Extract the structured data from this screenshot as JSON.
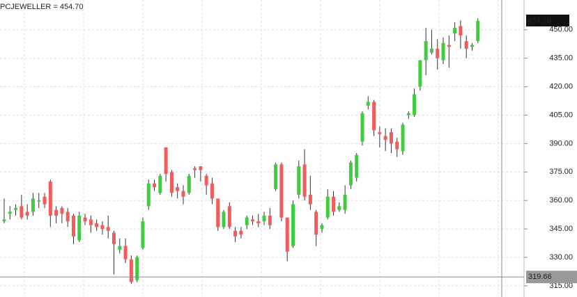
{
  "chart_data": {
    "type": "candlestick",
    "title": "PCJEWELLER = 454.70",
    "up_color": "#3fcc3f",
    "down_color": "#f25c5c",
    "grid": true,
    "ylim": [
      309.1,
      465.7
    ],
    "yticks": [
      {
        "value": 315,
        "label": "315.00"
      },
      {
        "value": 330,
        "label": "330.00"
      },
      {
        "value": 345,
        "label": "345.00"
      },
      {
        "value": 360,
        "label": "360.00"
      },
      {
        "value": 375,
        "label": "375.00"
      },
      {
        "value": 390,
        "label": "390.00"
      },
      {
        "value": 405,
        "label": "405.00"
      },
      {
        "value": 420,
        "label": "420.00"
      },
      {
        "value": 435,
        "label": "435.00"
      },
      {
        "value": 450,
        "label": "450.00"
      }
    ],
    "last_price": {
      "value": 454.7,
      "label": "454.70"
    },
    "crosshair": {
      "value": 319.66,
      "label": "319.66"
    },
    "open": [
      349,
      353,
      355,
      357,
      354,
      354,
      360,
      362,
      370,
      355,
      356,
      354,
      352,
      339,
      351,
      350,
      348,
      347,
      346,
      343,
      334,
      336,
      329,
      318,
      335,
      357,
      369,
      364,
      388,
      375,
      367,
      365,
      364,
      377,
      378,
      373,
      369,
      361,
      346,
      357,
      344,
      344,
      347,
      350,
      349,
      349,
      352,
      366,
      379,
      351,
      336,
      363,
      379,
      363,
      354,
      345,
      351,
      362,
      355,
      355,
      368,
      372,
      391,
      410,
      412,
      396,
      394,
      396,
      391,
      386,
      405,
      405,
      420,
      434,
      438,
      440,
      434,
      442,
      448,
      452,
      444,
      441,
      444
    ],
    "high": [
      361,
      357,
      358,
      363,
      358,
      364,
      364,
      364,
      371,
      357,
      357,
      356,
      353,
      354,
      353,
      352,
      350,
      349,
      352,
      344,
      340,
      340,
      331,
      331,
      351,
      371,
      371,
      374,
      388,
      376,
      369,
      368,
      374,
      378,
      378,
      374,
      372,
      361,
      355,
      359,
      346,
      346,
      352,
      352,
      353,
      354,
      356,
      380,
      380,
      351,
      360,
      381,
      387,
      373,
      355,
      348,
      366,
      365,
      359,
      368,
      381,
      385,
      407,
      415,
      413,
      399,
      398,
      398,
      393,
      401,
      407,
      419,
      434,
      451,
      450,
      445,
      446,
      447,
      454,
      455,
      447,
      443,
      456
    ],
    "low": [
      348,
      350,
      352,
      350,
      350,
      352,
      356,
      356,
      346,
      348,
      348,
      346,
      337,
      338,
      347,
      343,
      344,
      342,
      340,
      321,
      332,
      327,
      316,
      317,
      334,
      355,
      365,
      363,
      370,
      362,
      361,
      358,
      363,
      372,
      370,
      363,
      358,
      344,
      345,
      345,
      338,
      340,
      345,
      347,
      346,
      347,
      345,
      365,
      349,
      328,
      335,
      361,
      360,
      355,
      336,
      343,
      350,
      352,
      354,
      353,
      366,
      370,
      389,
      408,
      394,
      388,
      386,
      385,
      383,
      384,
      403,
      404,
      418,
      426,
      437,
      429,
      432,
      430,
      444,
      440,
      435,
      439,
      443
    ],
    "close": [
      350,
      354,
      356,
      351,
      352,
      361,
      360,
      358,
      352,
      352,
      353,
      349,
      341,
      352,
      349,
      347,
      346,
      345,
      344,
      337,
      336,
      329,
      317,
      330,
      349,
      369,
      367,
      373,
      374,
      364,
      365,
      362,
      373,
      376,
      376,
      368,
      361,
      346,
      354,
      346,
      341,
      342,
      351,
      349,
      348,
      352,
      347,
      379,
      351,
      333,
      358,
      378,
      362,
      358,
      342,
      347,
      362,
      354,
      357,
      363,
      380,
      384,
      406,
      412,
      397,
      395,
      392,
      390,
      387,
      400,
      406,
      416,
      434,
      444,
      440,
      435,
      443,
      441,
      451,
      447,
      440,
      442,
      454.7
    ]
  }
}
